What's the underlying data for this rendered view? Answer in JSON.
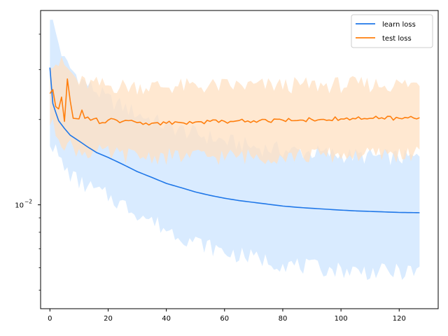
{
  "chart_data": {
    "type": "line",
    "title": "",
    "xlabel": "",
    "ylabel": "",
    "xlim": [
      -3.2,
      133.4
    ],
    "ylim": [
      0.0043,
      0.0485
    ],
    "yscale": "log",
    "x_ticks": [
      0,
      20,
      40,
      60,
      80,
      100,
      120
    ],
    "y_major_tick": {
      "value": 0.01,
      "label_base": "10",
      "label_exp": "−2"
    },
    "y_minor_ticks": [
      0.005,
      0.006,
      0.007,
      0.008,
      0.009,
      0.02,
      0.03,
      0.04
    ],
    "grid": false,
    "legend_position": "top-right",
    "legend": [
      "learn loss",
      "test loss"
    ],
    "colors": {
      "learn": "#1f77b4",
      "test": "#ff7f0e",
      "learn_fill": "#a9d0f5",
      "test_fill": "#ffcc99"
    },
    "series": [
      {
        "name": "learn loss",
        "color": "#1f77e8",
        "fill_color": "#cce4ff",
        "key_points": {
          "x": [
            0,
            1,
            2,
            3,
            5,
            7,
            10,
            13,
            16,
            20,
            25,
            30,
            35,
            40,
            45,
            50,
            55,
            60,
            65,
            70,
            75,
            80,
            85,
            90,
            95,
            100,
            105,
            110,
            115,
            120,
            127
          ],
          "y": [
            0.0305,
            0.0228,
            0.0212,
            0.0198,
            0.0186,
            0.0176,
            0.0168,
            0.016,
            0.0153,
            0.0147,
            0.0139,
            0.0131,
            0.0125,
            0.0119,
            0.0115,
            0.0111,
            0.0108,
            0.01055,
            0.01035,
            0.0102,
            0.01005,
            0.0099,
            0.0098,
            0.00972,
            0.00965,
            0.00958,
            0.00952,
            0.00948,
            0.00944,
            0.0094,
            0.00938
          ]
        },
        "band_upper": {
          "x": [
            0,
            5,
            10,
            20,
            30,
            40,
            50,
            60,
            70,
            80,
            90,
            100,
            110,
            120,
            127
          ],
          "y": [
            0.047,
            0.032,
            0.028,
            0.0235,
            0.021,
            0.019,
            0.0178,
            0.0168,
            0.016,
            0.0156,
            0.0153,
            0.015,
            0.0148,
            0.0147,
            0.0146
          ]
        },
        "band_lower": {
          "x": [
            0,
            5,
            10,
            20,
            30,
            40,
            50,
            60,
            70,
            80,
            90,
            100,
            110,
            120,
            127
          ],
          "y": [
            0.017,
            0.0134,
            0.012,
            0.0107,
            0.0094,
            0.0082,
            0.0074,
            0.0068,
            0.0065,
            0.0062,
            0.006,
            0.0059,
            0.0058,
            0.0058,
            0.0058
          ]
        }
      },
      {
        "name": "test loss",
        "color": "#ff7f0e",
        "fill_color": "#ffe0c2",
        "key_points": {
          "x": [
            0,
            1,
            2,
            3,
            4,
            5,
            6,
            7,
            8,
            10,
            11,
            12,
            15,
            18,
            20,
            25,
            30,
            35,
            40,
            45,
            50,
            55,
            60,
            70,
            80,
            90,
            100,
            110,
            120,
            127
          ],
          "y": [
            0.0247,
            0.0255,
            0.0222,
            0.0218,
            0.024,
            0.0197,
            0.0278,
            0.0232,
            0.0202,
            0.0201,
            0.0216,
            0.0202,
            0.0201,
            0.0195,
            0.0199,
            0.0197,
            0.0195,
            0.0194,
            0.0194,
            0.0195,
            0.0196,
            0.0197,
            0.0197,
            0.0198,
            0.0199,
            0.02,
            0.0201,
            0.0202,
            0.0202,
            0.0203
          ]
        },
        "band_upper": {
          "x": [
            0,
            5,
            10,
            20,
            30,
            40,
            50,
            60,
            70,
            80,
            90,
            100,
            110,
            120,
            127
          ],
          "y": [
            0.0325,
            0.031,
            0.027,
            0.0263,
            0.0262,
            0.0262,
            0.0262,
            0.0263,
            0.0263,
            0.0264,
            0.0264,
            0.0265,
            0.0266,
            0.0266,
            0.0267
          ]
        },
        "band_lower": {
          "x": [
            0,
            5,
            10,
            20,
            30,
            40,
            50,
            60,
            70,
            80,
            90,
            100,
            110,
            120,
            127
          ],
          "y": [
            0.0195,
            0.0165,
            0.0155,
            0.0151,
            0.0148,
            0.0148,
            0.0148,
            0.0148,
            0.0148,
            0.0149,
            0.0149,
            0.015,
            0.015,
            0.0151,
            0.0151
          ]
        }
      }
    ]
  }
}
